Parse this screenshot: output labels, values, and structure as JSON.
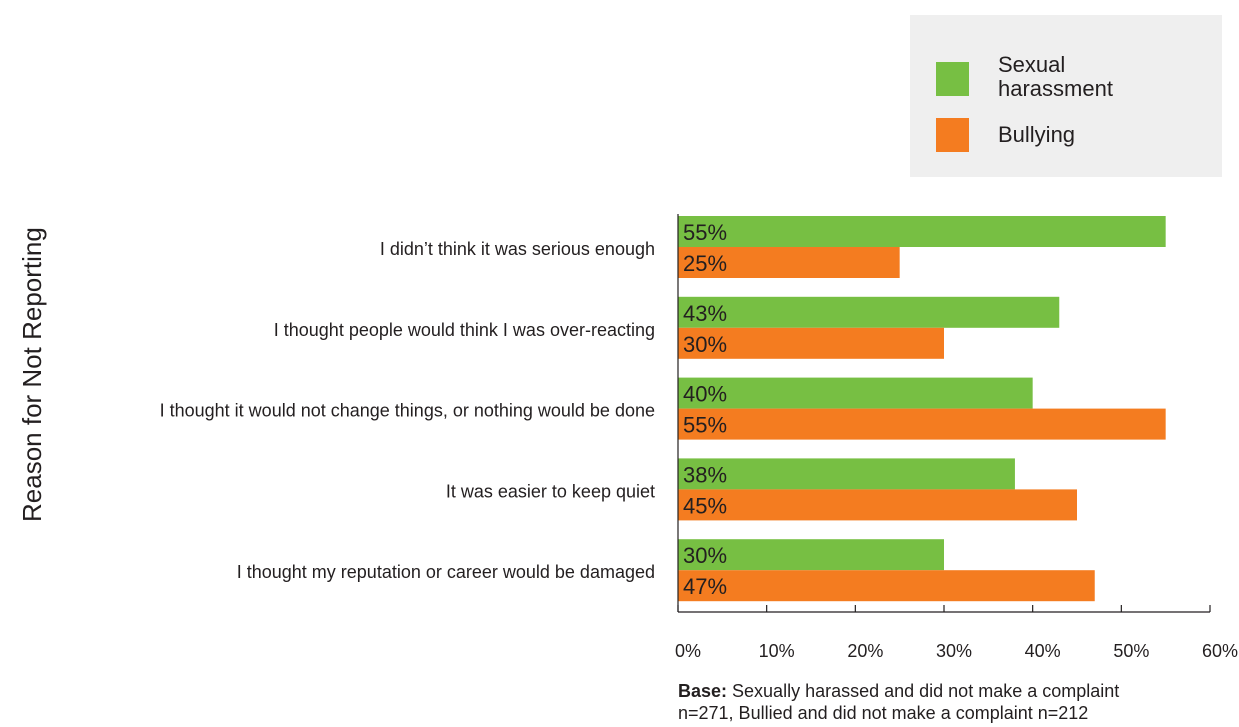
{
  "chart_data": {
    "type": "bar",
    "orientation": "horizontal",
    "ylabel": "Reason for Not Reporting",
    "categories": [
      "I didn’t think it was serious enough",
      "I thought people would think I was over-reacting",
      "I thought it would not change things, or nothing would be done",
      "It was easier to keep quiet",
      "I thought my reputation or career would be damaged"
    ],
    "series": [
      {
        "name": "Sexual harassment",
        "color": "#77bf43",
        "values": [
          55,
          43,
          40,
          38,
          30
        ],
        "labels": [
          "55%",
          "43%",
          "40%",
          "38%",
          "30%"
        ]
      },
      {
        "name": "Bullying",
        "color": "#f47c20",
        "values": [
          25,
          30,
          55,
          45,
          47
        ],
        "labels": [
          "25%",
          "30%",
          "55%",
          "45%",
          "47%"
        ]
      }
    ],
    "xlim": [
      0,
      60
    ],
    "xticks": [
      0,
      10,
      20,
      30,
      40,
      50,
      60
    ],
    "xtick_labels": [
      "0%",
      "10%",
      "20%",
      "30%",
      "40%",
      "50%",
      "60%"
    ],
    "grid": false,
    "legend": {
      "position": "top-right",
      "items": [
        {
          "lines": [
            "Sexual",
            "harassment"
          ],
          "color": "#77bf43"
        },
        {
          "lines": [
            "Bullying"
          ],
          "color": "#f47c20"
        }
      ]
    }
  },
  "note": {
    "bold": "Base:",
    "text": " Sexually harassed and did not make a complaint",
    "line2": "n=271, Bullied and did not make a complaint n=212"
  }
}
